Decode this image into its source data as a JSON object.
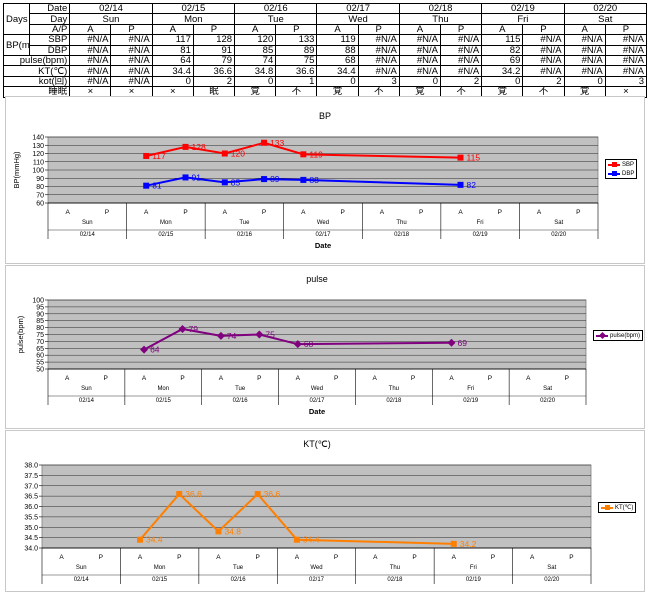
{
  "table": {
    "header_days": "Days",
    "header_bp": "BP(mmHg)",
    "row_labels": {
      "date": "Date",
      "day": "Day",
      "ap": "A/P",
      "sbp": "SBP",
      "dbp": "DBP",
      "pulse": "pulse(bpm)",
      "kt": "KT(℃)",
      "kot": "kot(回)",
      "sleep": "睡眠"
    },
    "dates": [
      "02/14",
      "02/15",
      "02/16",
      "02/17",
      "02/18",
      "02/19",
      "02/20"
    ],
    "days": [
      "Sun",
      "Mon",
      "Tue",
      "Wed",
      "Thu",
      "Fri",
      "Sat"
    ],
    "ap": [
      "A",
      "P",
      "A",
      "P",
      "A",
      "P",
      "A",
      "P",
      "A",
      "P",
      "A",
      "P",
      "A",
      "P"
    ],
    "sbp": [
      "#N/A",
      "#N/A",
      "117",
      "128",
      "120",
      "133",
      "119",
      "#N/A",
      "#N/A",
      "#N/A",
      "115",
      "#N/A",
      "#N/A",
      "#N/A"
    ],
    "dbp": [
      "#N/A",
      "#N/A",
      "81",
      "91",
      "85",
      "89",
      "88",
      "#N/A",
      "#N/A",
      "#N/A",
      "82",
      "#N/A",
      "#N/A",
      "#N/A"
    ],
    "pulse": [
      "#N/A",
      "#N/A",
      "64",
      "79",
      "74",
      "75",
      "68",
      "#N/A",
      "#N/A",
      "#N/A",
      "69",
      "#N/A",
      "#N/A",
      "#N/A"
    ],
    "kt": [
      "#N/A",
      "#N/A",
      "34.4",
      "36.6",
      "34.8",
      "36.6",
      "34.4",
      "#N/A",
      "#N/A",
      "#N/A",
      "34.2",
      "#N/A",
      "#N/A",
      "#N/A"
    ],
    "kot": [
      "#N/A",
      "#N/A",
      "0",
      "2",
      "0",
      "1",
      "0",
      "3",
      "0",
      "2",
      "0",
      "2",
      "0",
      "3"
    ],
    "sleep": [
      "×",
      "×",
      "×",
      "眠",
      "覚",
      "不",
      "覚",
      "不",
      "覚",
      "不",
      "覚",
      "不",
      "覚",
      "×"
    ]
  },
  "chart_data": [
    {
      "type": "line",
      "title": "BP",
      "xlabel": "Date",
      "ylabel": "BP(mmHg)",
      "ylim": [
        60,
        140
      ],
      "yticks": [
        60,
        70,
        80,
        90,
        100,
        110,
        120,
        130,
        140
      ],
      "x_slots": [
        "A",
        "P",
        "A",
        "P",
        "A",
        "P",
        "A",
        "P",
        "A",
        "P",
        "A",
        "P",
        "A",
        "P"
      ],
      "x_days": [
        "Sun",
        "Mon",
        "Tue",
        "Wed",
        "Thu",
        "Fri",
        "Sat"
      ],
      "x_dates": [
        "02/14",
        "02/15",
        "02/16",
        "02/17",
        "02/18",
        "02/19",
        "02/20"
      ],
      "grid": true,
      "legend": "right",
      "series": [
        {
          "name": "SBP",
          "color": "#ff0000",
          "values": [
            null,
            null,
            117,
            128,
            120,
            133,
            119,
            null,
            null,
            null,
            115,
            null,
            null,
            null
          ],
          "labels": [
            null,
            null,
            "117",
            "128",
            "120",
            "133",
            "119",
            null,
            null,
            null,
            "115",
            null,
            null,
            null
          ]
        },
        {
          "name": "DBP",
          "color": "#0000ff",
          "values": [
            null,
            null,
            81,
            91,
            85,
            89,
            88,
            null,
            null,
            null,
            82,
            null,
            null,
            null
          ],
          "labels": [
            null,
            null,
            "81",
            "91",
            "85",
            "89",
            "88",
            null,
            null,
            null,
            "82",
            null,
            null,
            null
          ]
        }
      ]
    },
    {
      "type": "line",
      "title": "pulse",
      "xlabel": "Date",
      "ylabel": "pulse(bpm)",
      "ylim": [
        50,
        100
      ],
      "yticks": [
        50,
        55,
        60,
        65,
        70,
        75,
        80,
        85,
        90,
        95,
        100
      ],
      "x_slots": [
        "A",
        "P",
        "A",
        "P",
        "A",
        "P",
        "A",
        "P",
        "A",
        "P",
        "A",
        "P",
        "A",
        "P"
      ],
      "x_days": [
        "Sun",
        "Mon",
        "Tue",
        "Wed",
        "Thu",
        "Fri",
        "Sat"
      ],
      "x_dates": [
        "02/14",
        "02/15",
        "02/16",
        "02/17",
        "02/18",
        "02/19",
        "02/20"
      ],
      "grid": true,
      "legend": "right",
      "series": [
        {
          "name": "pulse(bpm)",
          "color": "#800080",
          "values": [
            null,
            null,
            64,
            79,
            74,
            75,
            68,
            null,
            null,
            null,
            69,
            null,
            null,
            null
          ],
          "labels": [
            null,
            null,
            "64",
            "79",
            "74",
            "75",
            "68",
            null,
            null,
            null,
            "69",
            null,
            null,
            null
          ]
        }
      ]
    },
    {
      "type": "line",
      "title": "KT(℃)",
      "xlabel": "",
      "ylabel": "",
      "ylim": [
        34.0,
        38.0
      ],
      "yticks": [
        "34.0",
        "34.5",
        "35.0",
        "35.5",
        "36.0",
        "36.5",
        "37.0",
        "37.5",
        "38.0"
      ],
      "x_slots": [
        "A",
        "P",
        "A",
        "P",
        "A",
        "P",
        "A",
        "P",
        "A",
        "P",
        "A",
        "P",
        "A",
        "P"
      ],
      "x_days": [
        "Sun",
        "Mon",
        "Tue",
        "Wed",
        "Thu",
        "Fri",
        "Sat"
      ],
      "x_dates": [
        "02/14",
        "02/15",
        "02/16",
        "02/17",
        "02/18",
        "02/19",
        "02/20"
      ],
      "grid": true,
      "legend": "right",
      "series": [
        {
          "name": "KT(℃)",
          "color": "#ff7f00",
          "values": [
            null,
            null,
            34.4,
            36.6,
            34.8,
            36.6,
            34.4,
            null,
            null,
            null,
            34.2,
            null,
            null,
            null
          ],
          "labels": [
            null,
            null,
            "34.4",
            "36.6",
            "34.8",
            "36.6",
            "34.4",
            null,
            null,
            null,
            "34.2",
            null,
            null,
            null
          ]
        }
      ]
    }
  ]
}
